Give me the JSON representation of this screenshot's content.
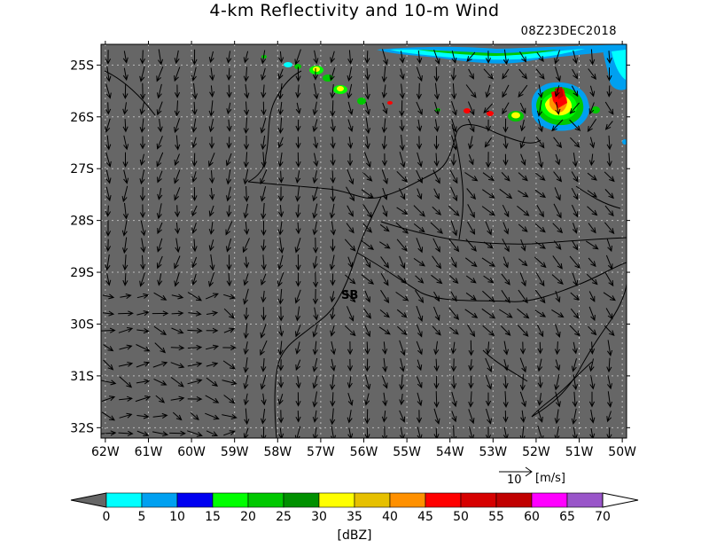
{
  "title": "4-km Reflectivity and 10-m Wind",
  "timestamp": "08Z23DEC2018",
  "map": {
    "lon_range": [
      -62.1,
      -49.9
    ],
    "lat_range": [
      -32.2,
      -24.6
    ],
    "lon_ticks": [
      "62W",
      "61W",
      "60W",
      "59W",
      "58W",
      "57W",
      "56W",
      "55W",
      "54W",
      "53W",
      "52W",
      "51W",
      "50W"
    ],
    "lat_ticks": [
      "25S",
      "26S",
      "27S",
      "28S",
      "29S",
      "30S",
      "31S",
      "32S"
    ],
    "background_color": "#666666",
    "grid_color": "#bbbbbb",
    "station_label": "SB",
    "wind_reference": {
      "value": "10",
      "unit": "[m/s]"
    }
  },
  "colorbar": {
    "unit": "[dBZ]",
    "labels": [
      "0",
      "5",
      "10",
      "15",
      "20",
      "25",
      "30",
      "35",
      "40",
      "45",
      "50",
      "55",
      "60",
      "65",
      "70"
    ],
    "colors": [
      "#00ffff",
      "#00a0f0",
      "#0000f0",
      "#00ff00",
      "#00c800",
      "#009000",
      "#ffff00",
      "#e6c000",
      "#ff9000",
      "#ff0000",
      "#d60000",
      "#c00000",
      "#ff00ff",
      "#9955c9"
    ],
    "under_color": "#666666",
    "over_color": "#ffffff"
  }
}
